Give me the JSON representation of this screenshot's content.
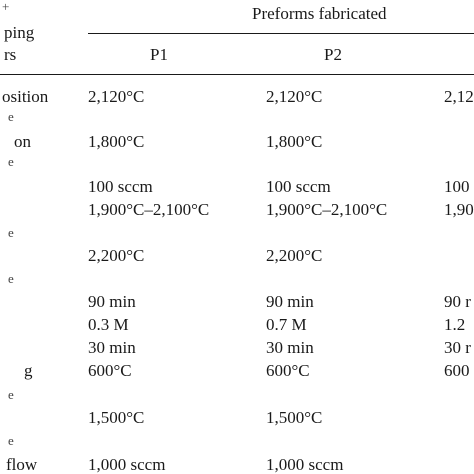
{
  "header": {
    "top_left_line1": "+",
    "top_left_line2": "ping",
    "top_left_line3": "rs",
    "group_title": "Preforms fabricated",
    "columns": [
      "P1",
      "P2"
    ]
  },
  "rows": [
    {
      "label": "osition",
      "p1": "2,120°C",
      "p2": "2,120°C",
      "p3": "2,12"
    },
    {
      "label": "e",
      "p1": "",
      "p2": "",
      "p3": ""
    },
    {
      "label": "on",
      "p1": "1,800°C",
      "p2": "1,800°C",
      "p3": ""
    },
    {
      "label": "e",
      "p1": "",
      "p2": "",
      "p3": ""
    },
    {
      "label": "",
      "p1": "100 sccm",
      "p2": "100 sccm",
      "p3": "100"
    },
    {
      "label": "",
      "p1": "1,900°C–2,100°C",
      "p2": "1,900°C–2,100°C",
      "p3": "1,90"
    },
    {
      "label": "e",
      "p1": "",
      "p2": "",
      "p3": ""
    },
    {
      "label": "",
      "p1": "2,200°C",
      "p2": "2,200°C",
      "p3": ""
    },
    {
      "label": "e",
      "p1": "",
      "p2": "",
      "p3": ""
    },
    {
      "label": "",
      "p1": "90 min",
      "p2": "90 min",
      "p3": "90 r"
    },
    {
      "label": "",
      "p1": "0.3 M",
      "p2": "0.7 M",
      "p3": "1.2"
    },
    {
      "label": "",
      "p1": "30 min",
      "p2": "30 min",
      "p3": "30 r"
    },
    {
      "label": "g",
      "p1": "600°C",
      "p2": "600°C",
      "p3": "600"
    },
    {
      "label": "e",
      "p1": "",
      "p2": "",
      "p3": ""
    },
    {
      "label": "",
      "p1": "1,500°C",
      "p2": "1,500°C",
      "p3": ""
    },
    {
      "label": "e",
      "p1": "",
      "p2": "",
      "p3": ""
    },
    {
      "label": "flow",
      "p1": "1,000 sccm",
      "p2": "1,000 sccm",
      "p3": ""
    }
  ]
}
